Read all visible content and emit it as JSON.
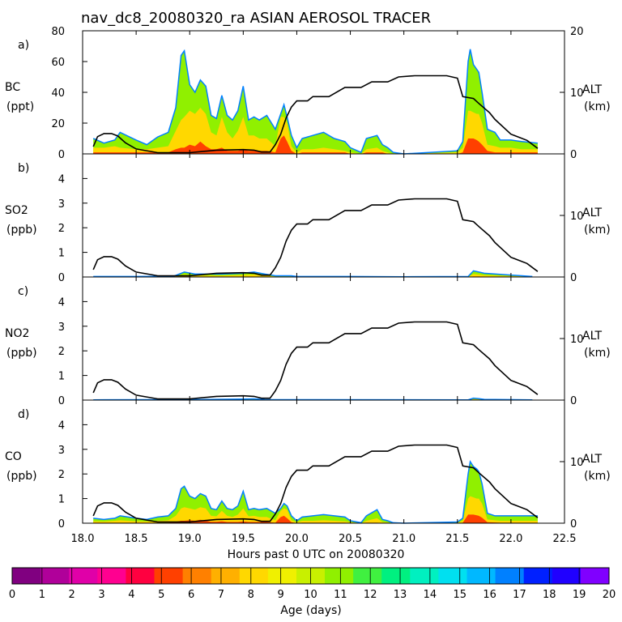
{
  "chart_data": {
    "type": "area",
    "title": "nav_dc8_20080320_ra ASIAN AEROSOL TRACER",
    "xlabel": "Hours past 0 UTC on 20080320",
    "xlim": [
      18.0,
      22.5
    ],
    "x_ticks": [
      "18.0",
      "18.5",
      "19.0",
      "19.5",
      "20.0",
      "20.5",
      "21.0",
      "21.5",
      "22.0",
      "22.5"
    ],
    "right_axis": {
      "label": "ALT",
      "unit": "(km)",
      "ylim": [
        0,
        20
      ],
      "ticks": [
        "0",
        "10",
        "20"
      ]
    },
    "colorbar": {
      "label": "Age (days)",
      "ticks": [
        "0",
        "1",
        "2",
        "3",
        "4",
        "5",
        "6",
        "7",
        "8",
        "9",
        "10",
        "11",
        "12",
        "13",
        "14",
        "15",
        "16",
        "17",
        "18",
        "19",
        "20"
      ],
      "colors": [
        "#800080",
        "#b0009a",
        "#e000a8",
        "#ff0090",
        "#ff0040",
        "#ff4000",
        "#ff8000",
        "#ffb000",
        "#ffd800",
        "#f0f000",
        "#c8f000",
        "#90f000",
        "#40f040",
        "#00f080",
        "#00f0c0",
        "#00e0f0",
        "#00b8ff",
        "#0080ff",
        "#0020ff",
        "#2000ff",
        "#8000ff"
      ]
    },
    "altitude_km": {
      "x": [
        18.1,
        18.14,
        18.2,
        18.27,
        18.33,
        18.4,
        18.5,
        18.7,
        19.0,
        19.25,
        19.5,
        19.6,
        19.67,
        19.75,
        19.8,
        19.85,
        19.9,
        19.95,
        20.0,
        20.1,
        20.15,
        20.3,
        20.45,
        20.6,
        20.7,
        20.85,
        20.95,
        21.1,
        21.4,
        21.5,
        21.55,
        21.65,
        21.7,
        21.8,
        21.85,
        22.0,
        22.15,
        22.25
      ],
      "y": [
        1.2,
        2.8,
        3.3,
        3.3,
        2.9,
        1.8,
        0.8,
        0.2,
        0.2,
        0.6,
        0.7,
        0.6,
        0.3,
        0.3,
        1.5,
        3.2,
        5.8,
        7.6,
        8.6,
        8.6,
        9.3,
        9.3,
        10.8,
        10.8,
        11.7,
        11.7,
        12.5,
        12.7,
        12.7,
        12.3,
        9.3,
        9.0,
        8.2,
        6.7,
        5.6,
        3.2,
        2.2,
        0.9
      ]
    },
    "panels": [
      {
        "letter": "a)",
        "species": "BC",
        "unit": "(ppt)",
        "ylim": [
          0,
          80
        ],
        "ticks": [
          "0",
          "20",
          "40",
          "60",
          "80"
        ],
        "tracer": {
          "x": [
            18.1,
            18.2,
            18.3,
            18.35,
            18.5,
            18.6,
            18.7,
            18.8,
            18.87,
            18.92,
            18.95,
            19.0,
            19.05,
            19.1,
            19.15,
            19.2,
            19.25,
            19.3,
            19.35,
            19.4,
            19.45,
            19.5,
            19.55,
            19.6,
            19.65,
            19.72,
            19.8,
            19.85,
            19.88,
            19.91,
            19.95,
            20.0,
            20.05,
            20.15,
            20.25,
            20.35,
            20.45,
            20.5,
            20.6,
            20.65,
            20.75,
            20.8,
            20.85,
            20.9,
            21.0,
            21.5,
            21.55,
            21.6,
            21.62,
            21.65,
            21.68,
            21.7,
            21.73,
            21.78,
            21.85,
            21.9,
            22.0,
            22.1,
            22.25
          ],
          "total": [
            10,
            7,
            9,
            14,
            9,
            6,
            11,
            14,
            30,
            64,
            67,
            45,
            40,
            48,
            44,
            25,
            23,
            38,
            25,
            22,
            28,
            44,
            22,
            24,
            22,
            25,
            16,
            26,
            32,
            24,
            12,
            4,
            10,
            12,
            14,
            10,
            8,
            4,
            1,
            10,
            12,
            6,
            4,
            1,
            0,
            2,
            8,
            60,
            68,
            58,
            55,
            53,
            40,
            16,
            14,
            9,
            9,
            8,
            7
          ],
          "mid_layer": [
            4,
            4,
            5,
            4,
            3,
            3,
            4,
            5,
            15,
            22,
            24,
            28,
            26,
            30,
            26,
            14,
            12,
            24,
            14,
            10,
            15,
            24,
            12,
            12,
            10,
            10,
            5,
            24,
            24,
            20,
            5,
            1,
            3,
            3,
            4,
            3,
            2,
            1,
            0,
            3,
            4,
            2,
            1,
            0,
            0,
            1,
            4,
            28,
            28,
            27,
            26,
            26,
            20,
            6,
            5,
            4,
            4,
            3,
            3
          ],
          "young_layer": [
            1,
            1,
            1,
            1,
            1,
            1,
            1,
            1,
            3,
            4,
            4,
            6,
            5,
            8,
            5,
            3,
            3,
            4,
            2,
            2,
            2,
            3,
            2,
            2,
            2,
            2,
            1,
            10,
            12,
            8,
            2,
            0,
            1,
            1,
            1,
            1,
            1,
            0,
            0,
            1,
            1,
            1,
            0,
            0,
            0,
            0,
            1,
            10,
            10,
            10,
            9,
            8,
            6,
            2,
            1,
            1,
            1,
            1,
            1
          ]
        }
      },
      {
        "letter": "b)",
        "species": "SO2",
        "unit": "(ppb)",
        "ylim": [
          0,
          5
        ],
        "ticks": [
          "0",
          "1",
          "2",
          "3",
          "4"
        ],
        "tracer": {
          "x": [
            18.1,
            18.5,
            18.85,
            18.95,
            19.05,
            19.3,
            19.5,
            19.6,
            19.7,
            19.8,
            19.95,
            20.0,
            20.3,
            20.5,
            21.0,
            21.6,
            21.65,
            21.7,
            21.75,
            22.2
          ],
          "total": [
            0.02,
            0.02,
            0.03,
            0.2,
            0.12,
            0.12,
            0.15,
            0.2,
            0.12,
            0.05,
            0.05,
            0.02,
            0.02,
            0.02,
            0.01,
            0.02,
            0.25,
            0.2,
            0.15,
            0.02
          ],
          "mid_layer": [
            0.01,
            0.01,
            0.02,
            0.1,
            0.06,
            0.06,
            0.08,
            0.1,
            0.06,
            0.02,
            0.02,
            0.01,
            0.01,
            0.01,
            0,
            0.01,
            0.12,
            0.1,
            0.07,
            0.01
          ],
          "young_layer": [
            0,
            0,
            0,
            0.01,
            0.01,
            0.01,
            0.01,
            0.01,
            0.01,
            0,
            0,
            0,
            0,
            0,
            0,
            0,
            0.02,
            0.02,
            0.01,
            0
          ]
        }
      },
      {
        "letter": "c)",
        "species": "NO2",
        "unit": "(ppb)",
        "ylim": [
          0,
          5
        ],
        "ticks": [
          "0",
          "1",
          "2",
          "3",
          "4"
        ],
        "tracer": {
          "x": [
            18.1,
            19.0,
            19.5,
            19.6,
            19.7,
            21.6,
            21.65,
            21.7,
            21.75,
            22.2
          ],
          "total": [
            0.01,
            0.02,
            0.04,
            0.05,
            0.02,
            0.01,
            0.08,
            0.06,
            0.03,
            0.01
          ],
          "mid_layer": [
            0,
            0.01,
            0.02,
            0.02,
            0.01,
            0,
            0.04,
            0.03,
            0.01,
            0
          ],
          "young_layer": [
            0,
            0,
            0,
            0,
            0,
            0,
            0.01,
            0,
            0,
            0
          ]
        }
      },
      {
        "letter": "d)",
        "species": "CO",
        "unit": "(ppb)",
        "ylim": [
          0,
          5
        ],
        "ticks": [
          "0",
          "1",
          "2",
          "3",
          "4"
        ],
        "tracer": {
          "x": [
            18.1,
            18.2,
            18.3,
            18.35,
            18.5,
            18.6,
            18.7,
            18.8,
            18.87,
            18.92,
            18.95,
            19.0,
            19.05,
            19.1,
            19.15,
            19.2,
            19.25,
            19.3,
            19.35,
            19.4,
            19.45,
            19.5,
            19.55,
            19.6,
            19.65,
            19.72,
            19.8,
            19.85,
            19.88,
            19.91,
            19.95,
            20.0,
            20.05,
            20.15,
            20.25,
            20.35,
            20.45,
            20.5,
            20.6,
            20.65,
            20.75,
            20.8,
            20.85,
            20.9,
            21.0,
            21.5,
            21.55,
            21.6,
            21.62,
            21.65,
            21.68,
            21.7,
            21.73,
            21.78,
            21.85,
            21.9,
            22.0,
            22.1,
            22.25
          ],
          "total": [
            0.2,
            0.15,
            0.2,
            0.3,
            0.2,
            0.15,
            0.25,
            0.3,
            0.6,
            1.4,
            1.5,
            1.1,
            1.0,
            1.2,
            1.1,
            0.6,
            0.55,
            0.9,
            0.6,
            0.55,
            0.7,
            1.3,
            0.55,
            0.6,
            0.55,
            0.6,
            0.4,
            0.6,
            0.8,
            0.7,
            0.3,
            0.1,
            0.25,
            0.3,
            0.35,
            0.3,
            0.25,
            0.1,
            0.02,
            0.3,
            0.55,
            0.15,
            0.1,
            0.02,
            0,
            0.05,
            0.2,
            2.0,
            2.5,
            2.3,
            2.2,
            2.1,
            1.6,
            0.4,
            0.3,
            0.3,
            0.3,
            0.3,
            0.3
          ],
          "mid_layer": [
            0.08,
            0.07,
            0.1,
            0.12,
            0.08,
            0.07,
            0.1,
            0.12,
            0.3,
            0.6,
            0.65,
            0.6,
            0.55,
            0.65,
            0.6,
            0.3,
            0.28,
            0.5,
            0.3,
            0.25,
            0.35,
            0.6,
            0.28,
            0.3,
            0.25,
            0.25,
            0.12,
            0.5,
            0.6,
            0.55,
            0.12,
            0.04,
            0.1,
            0.1,
            0.12,
            0.1,
            0.08,
            0.04,
            0,
            0.1,
            0.2,
            0.05,
            0.03,
            0,
            0,
            0.02,
            0.1,
            1.0,
            1.1,
            1.05,
            1.0,
            1.0,
            0.8,
            0.15,
            0.12,
            0.1,
            0.1,
            0.1,
            0.1
          ],
          "young_layer": [
            0.02,
            0.02,
            0.02,
            0.02,
            0.02,
            0.02,
            0.02,
            0.02,
            0.06,
            0.1,
            0.1,
            0.12,
            0.1,
            0.14,
            0.1,
            0.06,
            0.06,
            0.08,
            0.05,
            0.05,
            0.05,
            0.07,
            0.05,
            0.05,
            0.05,
            0.05,
            0.02,
            0.25,
            0.3,
            0.2,
            0.04,
            0,
            0.02,
            0.02,
            0.02,
            0.02,
            0.02,
            0,
            0,
            0.02,
            0.02,
            0.01,
            0,
            0,
            0,
            0,
            0.02,
            0.35,
            0.35,
            0.35,
            0.32,
            0.3,
            0.22,
            0.04,
            0.03,
            0.02,
            0.02,
            0.02,
            0.02
          ]
        }
      }
    ]
  }
}
